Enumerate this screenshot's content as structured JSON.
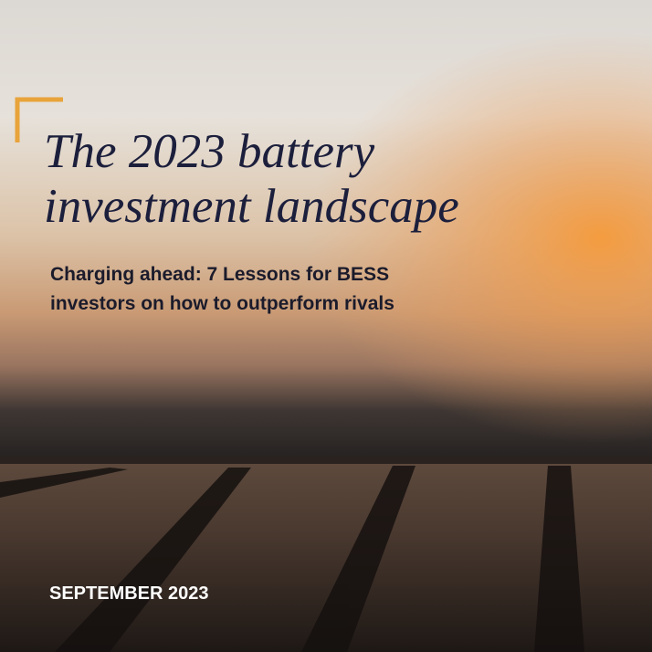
{
  "cover": {
    "title_lines": [
      "The 2023 battery",
      "investment landscape"
    ],
    "subtitle_lines": [
      "Charging ahead: 7 Lessons for BESS",
      "investors on how to outperform rivals"
    ],
    "date": "SEPTEMBER 2023"
  }
}
